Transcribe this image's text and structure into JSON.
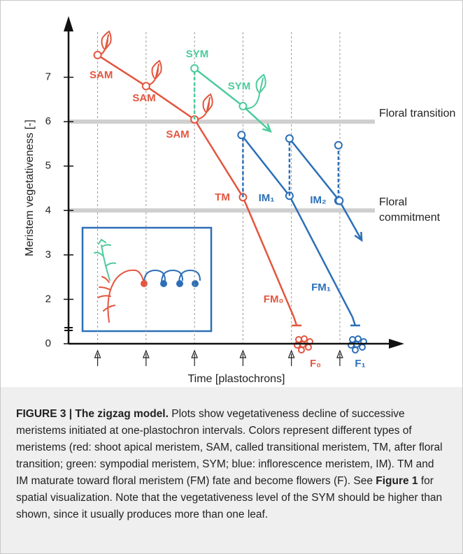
{
  "chart_data": {
    "type": "zigzag",
    "ylabel": "Meristem vegetativeness [-]",
    "xlabel": "Time [plastochrons]",
    "ylim": [
      1,
      8
    ],
    "yticks": [
      0,
      2,
      3,
      4,
      5,
      6,
      7
    ],
    "axis_break": true,
    "xlim": [
      0.4,
      7.3
    ],
    "xticks": [
      1,
      2,
      3,
      4,
      5,
      6
    ],
    "hlines": [
      {
        "value": 6,
        "label": "Floral transition"
      },
      {
        "value": 4,
        "label": "Floral commitment"
      }
    ],
    "series": [
      {
        "color": "#e2563f",
        "style": "solid",
        "markers": "circle",
        "end": "stop",
        "x": [
          1,
          2,
          3,
          4,
          5.05
        ],
        "values": [
          7.5,
          6.8,
          6.05,
          4.3,
          1.6
        ]
      },
      {
        "color": "#4ccb9c",
        "style": "dashed",
        "markers": "none",
        "end": "none",
        "x": [
          3,
          3
        ],
        "values": [
          6.05,
          7.2
        ]
      },
      {
        "color": "#4ccb9c",
        "style": "solid",
        "markers": "circle",
        "end": "arrow",
        "x": [
          3,
          4,
          4.57
        ],
        "values": [
          7.2,
          6.35,
          5.78
        ]
      },
      {
        "color": "#2c6fb7",
        "style": "dashed",
        "markers": "none",
        "end": "none",
        "x": [
          4,
          4
        ],
        "values": [
          4.3,
          5.7
        ]
      },
      {
        "color": "#2c6fb7",
        "style": "solid",
        "markers": "circle",
        "end": "stop",
        "x": [
          3.97,
          4.96,
          6.26
        ],
        "values": [
          5.7,
          4.33,
          1.6
        ]
      },
      {
        "color": "#2c6fb7",
        "style": "dashed",
        "markers": "none",
        "end": "none",
        "x": [
          4.96,
          4.96
        ],
        "values": [
          4.33,
          5.62
        ]
      },
      {
        "color": "#2c6fb7",
        "style": "solid",
        "markers": "circle",
        "end": "none",
        "x": [
          4.96,
          5.99
        ],
        "values": [
          5.62,
          4.22
        ]
      },
      {
        "color": "#2c6fb7",
        "style": "dashed",
        "markers": "circle",
        "end": "none",
        "x": [
          5.97,
          5.97
        ],
        "values": [
          5.47,
          4.22
        ]
      },
      {
        "color": "#2c6fb7",
        "style": "solid",
        "markers": "circle",
        "end": "arrow",
        "x": [
          5.99,
          6.45
        ],
        "values": [
          4.22,
          3.33
        ]
      }
    ],
    "annotations": [
      {
        "text": "SAM",
        "color": "#e2563f"
      },
      {
        "text": "SAM",
        "color": "#e2563f"
      },
      {
        "text": "SAM",
        "color": "#e2563f"
      },
      {
        "text": "SYM",
        "color": "#4ccb9c"
      },
      {
        "text": "SYM",
        "color": "#4ccb9c"
      },
      {
        "text": "TM",
        "color": "#e2563f"
      },
      {
        "text": "IM₁",
        "color": "#2c6fb7"
      },
      {
        "text": "IM₂",
        "color": "#2c6fb7"
      },
      {
        "text": "FM₀",
        "color": "#e2563f"
      },
      {
        "text": "FM₁",
        "color": "#2c6fb7"
      },
      {
        "text": "F₀",
        "color": "#e2563f"
      },
      {
        "text": "F₁",
        "color": "#2c6fb7"
      }
    ]
  },
  "caption": {
    "title": "FIGURE 3 | The zigzag model.",
    "text1": " Plots show vegetativeness decline of successive meristems initiated at one-plastochron intervals. Colors represent different types of meristems (red: shoot apical meristem, SAM, called transitional meristem, TM, after floral transition; green: sympodial meristem, SYM; blue: inflorescence meristem, IM). TM and IM maturate toward floral meristem (FM) fate and become flowers (F). See ",
    "ref": "Figure 1",
    "text2": " for spatial visualization. Note that the vegetativeness level of the SYM should be higher than shown, since it usually produces more than one leaf."
  }
}
